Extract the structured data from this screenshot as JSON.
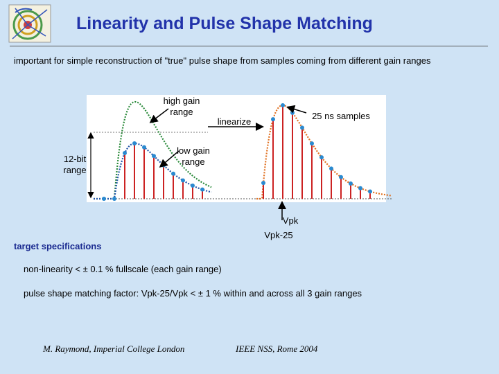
{
  "slide": {
    "title": "Linearity and Pulse Shape Matching",
    "subtitle": "important for simple reconstruction of \"true\" pulse shape from samples coming from different gain ranges"
  },
  "figure": {
    "high_gain_label_line1": "high gain",
    "high_gain_label_line2": "range",
    "low_gain_label_line1": "low gain",
    "low_gain_label_line2": "range",
    "bit_range_line1": "12-bit",
    "bit_range_line2": "range",
    "linearize_label": "linearize",
    "samples_label": "25 ns samples",
    "vpk_label": "Vpk",
    "vpk25_label": "Vpk-25"
  },
  "targets": {
    "heading": "target specifications",
    "spec1": "non-linearity < ± 0.1 % fullscale (each gain range)",
    "spec2": "pulse shape matching factor: Vpk-25/Vpk < ± 1 %   within and across all 3 gain ranges"
  },
  "footer": {
    "author": "M. Raymond, Imperial College London",
    "conference": "IEEE NSS, Rome 2004"
  },
  "colors": {
    "title": "#2233aa",
    "background": "#cfe3f5",
    "high_curve": "#2a8a3a",
    "low_curve": "#2255aa",
    "out_curve": "#e07020",
    "sample_bar": "#cc2222",
    "sample_dot": "#2a8ad0"
  }
}
